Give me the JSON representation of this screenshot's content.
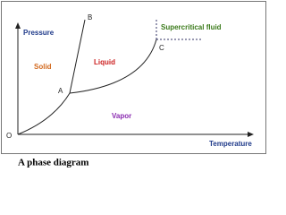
{
  "axes": {
    "y_label": "Pressure",
    "x_label": "Temperature",
    "origin": "O"
  },
  "points": {
    "a": "A",
    "b": "B",
    "c": "C"
  },
  "regions": {
    "solid": "Solid",
    "liquid": "Liquid",
    "vapor": "Vapor",
    "supercritical": "Supercritical fluid"
  },
  "caption": "A phase diagram"
}
